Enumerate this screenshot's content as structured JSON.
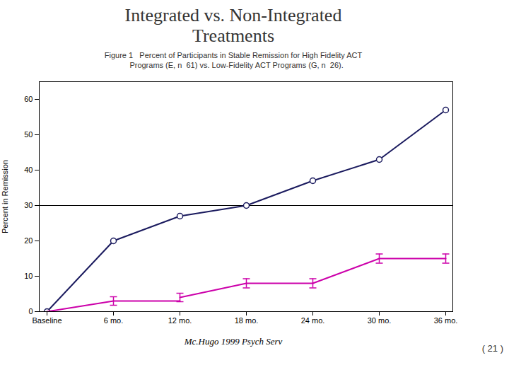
{
  "chart_data": {
    "type": "line",
    "title": "Integrated vs. Non-Integrated\nTreatments",
    "subtitle": "Figure 1   Percent of Participants in Stable Remission for High Fidelity ACT\n   Programs (E, n  61) vs. Low-Fidelity ACT Programs (G, n  26).",
    "caption": "Mc.Hugo 1999 Psych Serv",
    "annotations": [
      "( 21 )"
    ],
    "ylabel": "Percent in Remission",
    "categories": [
      "Baseline",
      "6 mo.",
      "12 mo.",
      "18 mo.",
      "24 mo.",
      "30 mo.",
      "36 mo."
    ],
    "ylim": [
      0,
      65
    ],
    "yticks": [
      0,
      10,
      20,
      30,
      40,
      50,
      60
    ],
    "grid": false,
    "reference_lines": [
      30
    ],
    "series": [
      {
        "color": "#1a1a5e",
        "marker": "circle",
        "values": [
          0,
          20,
          27,
          30,
          37,
          43,
          57
        ]
      },
      {
        "color": "#cc00aa",
        "segments": [
          {
            "x": [
              "Baseline",
              "6 mo."
            ],
            "values": [
              0,
              3
            ]
          },
          {
            "x": [
              "6 mo.",
              "12 mo."
            ],
            "values": [
              3,
              3
            ]
          },
          {
            "x": [
              "12 mo.",
              "18 mo."
            ],
            "values": [
              4,
              8
            ]
          },
          {
            "x": [
              "18 mo.",
              "24 mo."
            ],
            "values": [
              8,
              8
            ]
          },
          {
            "x": [
              "24 mo.",
              "30 mo."
            ],
            "values": [
              8,
              15
            ]
          },
          {
            "x": [
              "30 mo.",
              "36 mo."
            ],
            "values": [
              15,
              15
            ]
          }
        ],
        "error_bars": [
          {
            "x": "6 mo.",
            "value": 3,
            "error": 1.2
          },
          {
            "x": "12 mo.",
            "value": 4,
            "error": 1.2
          },
          {
            "x": "18 mo.",
            "value": 8,
            "error": 1.3
          },
          {
            "x": "24 mo.",
            "value": 8,
            "error": 1.3
          },
          {
            "x": "30 mo.",
            "value": 15,
            "error": 1.3
          },
          {
            "x": "36 mo.",
            "value": 15,
            "error": 1.3
          }
        ]
      }
    ]
  }
}
